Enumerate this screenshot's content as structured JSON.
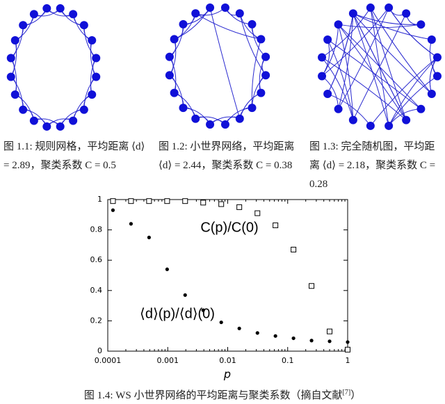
{
  "figures": [
    {
      "caption": "图 1.1: 规则网格，平均距离 ⟨d⟩ = 2.89，聚类系数 C = 0.5"
    },
    {
      "caption": "图 1.2: 小世界网络，平均距离 ⟨d⟩ = 2.44，聚类系数 C = 0.38"
    },
    {
      "caption": "图 1.3: 完全随机图，平均距离 ⟨d⟩ = 2.18，聚类系数 C = 0.28"
    }
  ],
  "chart_data": {
    "type": "scatter",
    "x_label": "p",
    "xlog": true,
    "x": [
      0.000122,
      0.000244,
      0.000488,
      0.000977,
      0.00195,
      0.0039,
      0.0078,
      0.0156,
      0.0313,
      0.0625,
      0.125,
      0.25,
      0.5,
      1
    ],
    "series": [
      {
        "name": "C(p)/C(0)",
        "color": "#000000",
        "marker": "open-square",
        "values": [
          0.99,
          0.99,
          0.99,
          0.99,
          0.99,
          0.98,
          0.97,
          0.95,
          0.91,
          0.83,
          0.67,
          0.43,
          0.13,
          0.01
        ]
      },
      {
        "name": "⟨d⟩(p)/⟨d⟩(0)",
        "color": "#000000",
        "marker": "dot",
        "values": [
          0.93,
          0.84,
          0.75,
          0.54,
          0.37,
          0.27,
          0.19,
          0.15,
          0.12,
          0.1,
          0.085,
          0.07,
          0.065,
          0.06
        ]
      }
    ],
    "xlim": [
      0.0001,
      1
    ],
    "xticks": [
      0.0001,
      0.001,
      0.01,
      0.1,
      1
    ],
    "ylim": [
      0,
      1
    ],
    "yticks": [
      0,
      0.2,
      0.4,
      0.6,
      0.8,
      1
    ]
  },
  "caption_4": {
    "text": "图 1.4: WS 小世界网络的平均距离与聚类系数（摘自文献",
    "ref": "[7]",
    "close": "）"
  }
}
